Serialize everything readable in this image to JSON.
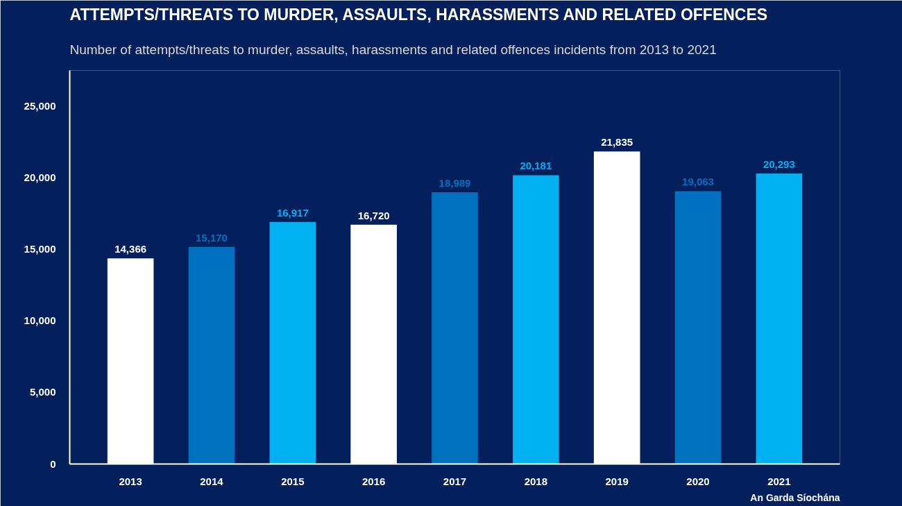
{
  "chart_data": {
    "type": "bar",
    "title": "ATTEMPTS/THREATS TO MURDER, ASSAULTS, HARASSMENTS AND RELATED OFFENCES",
    "subtitle": "Number of attempts/threats to murder, assaults, harassments and related offences incidents from 2013 to 2021",
    "categories": [
      "2013",
      "2014",
      "2015",
      "2016",
      "2017",
      "2018",
      "2019",
      "2020",
      "2021"
    ],
    "values": [
      14366,
      15170,
      16917,
      16720,
      18989,
      20181,
      21835,
      19063,
      20293
    ],
    "colors": [
      "#ffffff",
      "#0070c0",
      "#00b0f0",
      "#ffffff",
      "#0070c0",
      "#00b0f0",
      "#ffffff",
      "#0070c0",
      "#00b0f0"
    ],
    "ylim": [
      0,
      27500
    ],
    "yticks": [
      0,
      {
        "value": 5000,
        "label": "5,000"
      },
      {
        "value": 10000,
        "label": "10,000"
      },
      {
        "value": 15000,
        "label": "15,000"
      },
      {
        "value": 20000,
        "label": "20,000"
      },
      {
        "value": 25000,
        "label": "25,000"
      }
    ],
    "grid": false,
    "value_labels": [
      "14,366",
      "15,170",
      "16,917",
      "16,720",
      "18,989",
      "20,181",
      "21,835",
      "19,063",
      "20,293"
    ],
    "annotations": [
      "An Garda Síochána"
    ]
  }
}
